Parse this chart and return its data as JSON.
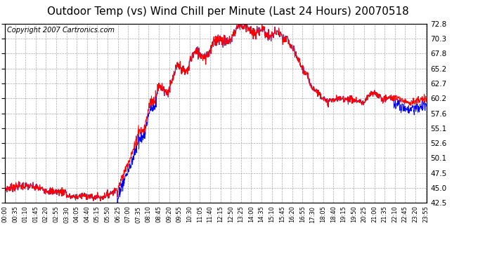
{
  "title": "Outdoor Temp (vs) Wind Chill per Minute (Last 24 Hours) 20070518",
  "copyright_text": "Copyright 2007 Cartronics.com",
  "y_min": 42.5,
  "y_max": 72.8,
  "y_ticks": [
    42.5,
    45.0,
    47.5,
    50.1,
    52.6,
    55.1,
    57.6,
    60.2,
    62.7,
    65.2,
    67.8,
    70.3,
    72.8
  ],
  "x_labels": [
    "00:00",
    "00:35",
    "01:10",
    "01:45",
    "02:20",
    "02:55",
    "03:30",
    "04:05",
    "04:40",
    "05:15",
    "05:50",
    "06:25",
    "07:00",
    "07:35",
    "08:10",
    "08:45",
    "09:20",
    "09:55",
    "10:30",
    "11:05",
    "11:40",
    "12:15",
    "12:50",
    "13:25",
    "14:00",
    "14:35",
    "15:10",
    "15:45",
    "16:20",
    "16:55",
    "17:30",
    "18:05",
    "18:40",
    "19:15",
    "19:50",
    "20:25",
    "21:00",
    "21:35",
    "22:10",
    "22:45",
    "23:20",
    "23:55"
  ],
  "background_color": "#ffffff",
  "plot_bg_color": "#ffffff",
  "grid_color": "#aaaaaa",
  "line_color_red": "#ff0000",
  "line_color_blue": "#0000ff",
  "title_fontsize": 11,
  "copyright_fontsize": 7
}
